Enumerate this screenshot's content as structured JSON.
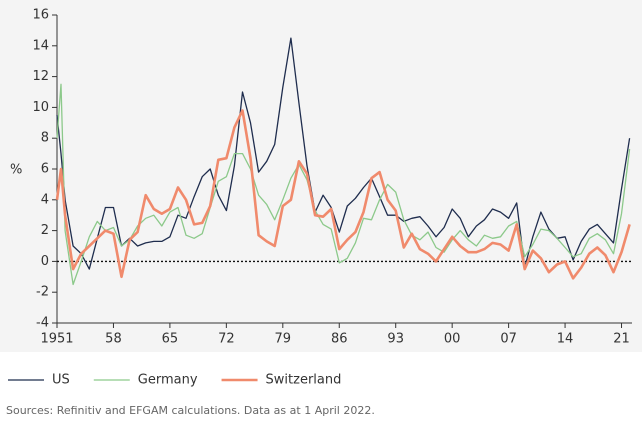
{
  "chart_data": {
    "type": "line",
    "y_label": "%",
    "source": "Sources: Refinitiv and EFGAM calculations. Data as at 1 April 2022.",
    "x": [
      1951,
      1951.5,
      1952,
      1953,
      1954,
      1955,
      1956,
      1957,
      1958,
      1959,
      1960,
      1961,
      1962,
      1963,
      1964,
      1965,
      1966,
      1967,
      1968,
      1969,
      1970,
      1971,
      1972,
      1973,
      1974,
      1975,
      1976,
      1977,
      1978,
      1979,
      1980,
      1981,
      1982,
      1983,
      1984,
      1985,
      1986,
      1987,
      1988,
      1989,
      1990,
      1991,
      1992,
      1993,
      1994,
      1995,
      1996,
      1997,
      1998,
      1999,
      2000,
      2001,
      2002,
      2003,
      2004,
      2005,
      2006,
      2007,
      2008,
      2009,
      2010,
      2011,
      2012,
      2013,
      2014,
      2015,
      2016,
      2017,
      2018,
      2019,
      2020,
      2021,
      2022
    ],
    "series": [
      {
        "name": "US",
        "color": "#1f2d4e",
        "width": 1.3,
        "values": [
          9.5,
          7,
          4,
          1,
          0.5,
          -0.5,
          1.5,
          3.5,
          3.5,
          1,
          1.5,
          1,
          1.2,
          1.3,
          1.3,
          1.6,
          3,
          2.8,
          4.2,
          5.5,
          6,
          4.3,
          3.3,
          6.2,
          11,
          9,
          5.8,
          6.5,
          7.6,
          11.3,
          14.5,
          10.3,
          6.2,
          3.2,
          4.3,
          3.5,
          1.9,
          3.6,
          4.1,
          4.8,
          5.4,
          4.2,
          3,
          3,
          2.6,
          2.8,
          2.9,
          2.3,
          1.6,
          2.2,
          3.4,
          2.8,
          1.6,
          2.3,
          2.7,
          3.4,
          3.2,
          2.8,
          3.8,
          -0.4,
          1.6,
          3.2,
          2.1,
          1.5,
          1.6,
          0.1,
          1.3,
          2.1,
          2.4,
          1.8,
          1.2,
          4.7,
          8
        ]
      },
      {
        "name": "Germany",
        "color": "#8cc98a",
        "width": 1.3,
        "values": [
          8,
          11.5,
          2,
          -1.5,
          0,
          1.6,
          2.6,
          2,
          2.2,
          1,
          1.4,
          2.3,
          2.8,
          3,
          2.3,
          3.2,
          3.5,
          1.7,
          1.5,
          1.8,
          3.5,
          5.2,
          5.5,
          7,
          7,
          6,
          4.3,
          3.7,
          2.7,
          4,
          5.4,
          6.3,
          5.3,
          3.3,
          2.4,
          2.1,
          -0.1,
          0.2,
          1.2,
          2.8,
          2.7,
          4,
          5,
          4.5,
          2.7,
          1.7,
          1.4,
          1.9,
          0.9,
          0.6,
          1.4,
          2,
          1.4,
          1,
          1.7,
          1.5,
          1.6,
          2.3,
          2.6,
          0.3,
          1.1,
          2.1,
          2,
          1.5,
          0.9,
          0.3,
          0.5,
          1.5,
          1.8,
          1.4,
          0.5,
          3.1,
          7.3
        ]
      },
      {
        "name": "Switzerland",
        "color": "#f08a6c",
        "width": 2.6,
        "values": [
          4,
          6,
          3,
          -0.5,
          0.5,
          1,
          1.5,
          2,
          1.8,
          -1,
          1.4,
          1.9,
          4.3,
          3.4,
          3.1,
          3.4,
          4.8,
          4,
          2.4,
          2.5,
          3.6,
          6.6,
          6.7,
          8.7,
          9.8,
          6.7,
          1.7,
          1.3,
          1,
          3.6,
          4,
          6.5,
          5.7,
          3,
          2.9,
          3.4,
          0.8,
          1.4,
          1.9,
          3.2,
          5.4,
          5.8,
          4,
          3.3,
          0.9,
          1.8,
          0.8,
          0.5,
          0,
          0.8,
          1.6,
          1,
          0.6,
          0.6,
          0.8,
          1.2,
          1.1,
          0.7,
          2.4,
          -0.5,
          0.7,
          0.2,
          -0.7,
          -0.2,
          0,
          -1.1,
          -0.4,
          0.5,
          0.9,
          0.4,
          -0.7,
          0.6,
          2.4
        ]
      }
    ],
    "xlim": [
      1951,
      2022.3
    ],
    "xticks": [
      1951,
      {
        "value": 1958,
        "label": "58"
      },
      {
        "value": 1965,
        "label": "65"
      },
      {
        "value": 1972,
        "label": "72"
      },
      {
        "value": 1979,
        "label": "79"
      },
      {
        "value": 1986,
        "label": "86"
      },
      {
        "value": 1993,
        "label": "93"
      },
      {
        "value": 2000,
        "label": "00"
      },
      {
        "value": 2007,
        "label": "07"
      },
      {
        "value": 2014,
        "label": "14"
      },
      {
        "value": 2021,
        "label": "21"
      }
    ],
    "ylim": [
      -4,
      16
    ],
    "yticks": [
      -4,
      -2,
      0,
      2,
      4,
      6,
      8,
      10,
      12,
      14,
      16
    ],
    "zero_line": true,
    "legend": "bottom-left"
  }
}
